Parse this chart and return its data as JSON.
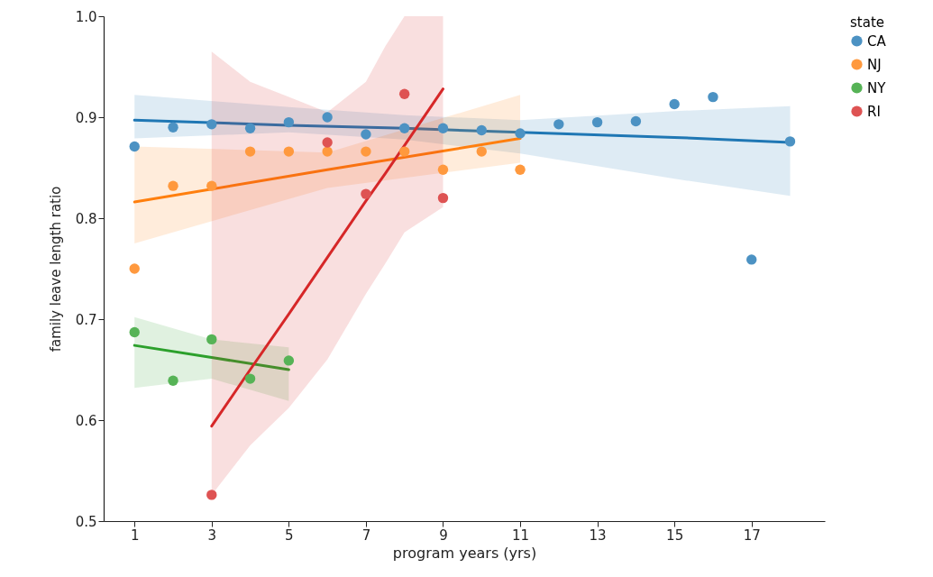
{
  "chart_data": {
    "type": "scatter",
    "xlabel": "program years (yrs)",
    "ylabel": "family leave length ratio",
    "legend_title": "state",
    "legend": "right",
    "marker": "circle",
    "grid": false,
    "xlim": [
      0.2,
      18.9
    ],
    "xticks": [
      1,
      3,
      5,
      7,
      9,
      11,
      13,
      15,
      17
    ],
    "ylim": [
      0.5,
      1.0
    ],
    "yticks": [
      0.5,
      0.6,
      0.7,
      0.8,
      0.9,
      {
        "value": 1.0,
        "label": "1.0"
      }
    ],
    "series": [
      {
        "type": "line",
        "marker": "none",
        "color": "#1f77b4",
        "x": [
          1,
          5,
          8,
          11,
          15,
          18
        ],
        "values": [
          0.897,
          0.892,
          0.889,
          0.885,
          0.88,
          0.875
        ],
        "lower": [
          0.879,
          0.885,
          0.878,
          0.864,
          0.839,
          0.822
        ],
        "upper": [
          0.922,
          0.91,
          0.902,
          0.897,
          0.906,
          0.911
        ]
      },
      {
        "type": "line",
        "marker": "none",
        "color": "#ff7f0e",
        "x": [
          1,
          6,
          11
        ],
        "values": [
          0.816,
          0.848,
          0.879
        ],
        "lower": [
          0.775,
          0.83,
          0.855
        ],
        "upper": [
          0.871,
          0.865,
          0.922
        ]
      },
      {
        "type": "line",
        "marker": "none",
        "color": "#2ca02c",
        "x": [
          1,
          3,
          5
        ],
        "values": [
          0.674,
          0.662,
          0.65
        ],
        "lower": [
          0.632,
          0.641,
          0.619
        ],
        "upper": [
          0.702,
          0.68,
          0.672
        ]
      },
      {
        "type": "line",
        "marker": "none",
        "color": "#d62728",
        "x": [
          3,
          4,
          5,
          6,
          7,
          7.5,
          8,
          9
        ],
        "values": [
          0.594,
          0.65,
          0.705,
          0.761,
          0.817,
          0.844,
          0.872,
          0.928
        ],
        "lower": [
          0.526,
          0.575,
          0.612,
          0.66,
          0.725,
          0.755,
          0.786,
          0.811
        ],
        "upper": [
          0.965,
          0.935,
          0.92,
          0.905,
          0.935,
          0.97,
          1.0,
          1.0
        ]
      },
      {
        "name": "CA",
        "color": "#4c92c3",
        "x": [
          1,
          2,
          3,
          4,
          5,
          6,
          7,
          8,
          9,
          10,
          11,
          12,
          13,
          14,
          15,
          16,
          17,
          18
        ],
        "values": [
          0.871,
          0.89,
          0.893,
          0.889,
          0.895,
          0.9,
          0.883,
          0.889,
          0.889,
          0.887,
          0.884,
          0.893,
          0.895,
          0.896,
          0.913,
          0.92,
          0.759,
          0.876
        ]
      },
      {
        "name": "NJ",
        "color": "#ff993e",
        "x": [
          1,
          2,
          3,
          4,
          5,
          6,
          7,
          8,
          9,
          10,
          11
        ],
        "values": [
          0.75,
          0.832,
          0.832,
          0.866,
          0.866,
          0.866,
          0.866,
          0.866,
          0.848,
          0.866,
          0.848
        ]
      },
      {
        "name": "NY",
        "color": "#56b356",
        "x": [
          1,
          2,
          3,
          4,
          5
        ],
        "values": [
          0.687,
          0.639,
          0.68,
          0.641,
          0.659
        ]
      },
      {
        "name": "RI",
        "color": "#de5353",
        "x": [
          3,
          6,
          7,
          8,
          9
        ],
        "values": [
          0.526,
          0.875,
          0.824,
          0.923,
          0.82
        ]
      }
    ]
  }
}
